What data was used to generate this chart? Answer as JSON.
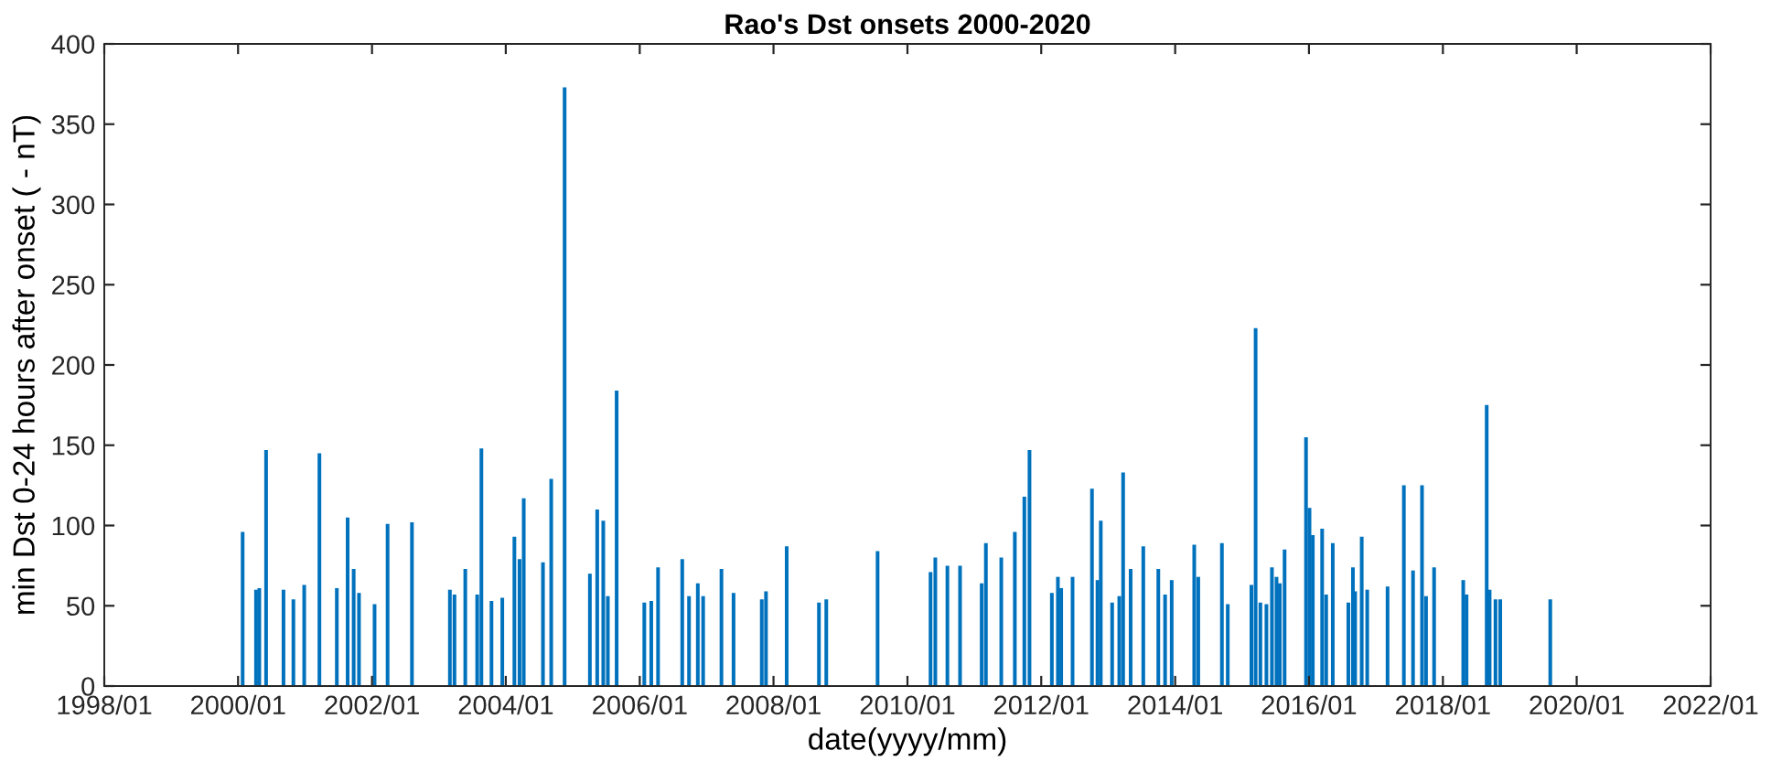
{
  "chart_data": {
    "type": "bar",
    "title": "Rao's Dst onsets 2000-2020",
    "xlabel": "date(yyyy/mm)",
    "ylabel": "min Dst 0-24 hours after onset ( - nT)",
    "x": [
      "2000-01-26",
      "2000-04-08",
      "2000-04-26",
      "2000-06-02",
      "2000-09-05",
      "2000-10-29",
      "2000-12-27",
      "2001-03-20",
      "2001-06-23",
      "2001-08-21",
      "2001-09-23",
      "2001-10-22",
      "2002-01-15",
      "2002-03-27",
      "2002-08-07",
      "2003-03-02",
      "2003-03-27",
      "2003-05-25",
      "2003-07-29",
      "2003-08-21",
      "2003-10-15",
      "2003-12-13",
      "2004-02-17",
      "2004-03-16",
      "2004-04-08",
      "2004-07-22",
      "2004-09-05",
      "2004-11-17",
      "2005-04-04",
      "2005-05-14",
      "2005-06-16",
      "2005-07-11",
      "2005-08-28",
      "2006-01-26",
      "2006-03-05",
      "2006-04-11",
      "2006-08-21",
      "2006-09-27",
      "2006-11-14",
      "2006-12-13",
      "2007-03-23",
      "2007-05-28",
      "2007-10-29",
      "2007-11-21",
      "2008-03-13",
      "2008-09-05",
      "2008-10-15",
      "2009-07-22",
      "2010-05-07",
      "2010-06-02",
      "2010-08-07",
      "2010-10-15",
      "2011-02-10",
      "2011-03-05",
      "2011-05-28",
      "2011-08-10",
      "2011-10-01",
      "2011-10-29",
      "2012-02-28",
      "2012-04-01",
      "2012-04-19",
      "2012-06-20",
      "2012-10-04",
      "2012-11-03",
      "2012-11-21",
      "2013-01-22",
      "2013-03-02",
      "2013-03-23",
      "2013-05-03",
      "2013-07-11",
      "2013-10-01",
      "2013-11-07",
      "2013-12-13",
      "2014-04-15",
      "2014-05-07",
      "2014-09-13",
      "2014-10-15",
      "2015-02-21",
      "2015-03-16",
      "2015-04-11",
      "2015-05-14",
      "2015-06-13",
      "2015-07-08",
      "2015-07-26",
      "2015-08-21",
      "2015-12-16",
      "2016-01-04",
      "2016-01-22",
      "2016-03-13",
      "2016-04-04",
      "2016-05-10",
      "2016-08-03",
      "2016-08-28",
      "2016-09-09",
      "2016-10-15",
      "2016-11-14",
      "2017-03-05",
      "2017-06-02",
      "2017-07-22",
      "2017-09-09",
      "2017-10-01",
      "2017-11-14",
      "2018-04-22",
      "2018-05-10",
      "2018-08-28",
      "2018-09-13",
      "2018-10-15",
      "2018-11-10",
      "2019-08-10"
    ],
    "values": [
      96,
      60,
      61,
      147,
      60,
      54,
      63,
      145,
      61,
      105,
      73,
      58,
      51,
      101,
      102,
      60,
      57,
      73,
      57,
      148,
      53,
      55,
      93,
      79,
      117,
      77,
      129,
      373,
      70,
      110,
      103,
      56,
      184,
      52,
      53,
      74,
      79,
      56,
      64,
      56,
      73,
      58,
      54,
      59,
      87,
      52,
      54,
      84,
      71,
      80,
      75,
      75,
      64,
      89,
      80,
      96,
      118,
      147,
      58,
      68,
      61,
      68,
      123,
      66,
      103,
      52,
      56,
      133,
      73,
      87,
      73,
      57,
      66,
      88,
      68,
      89,
      51,
      63,
      223,
      52,
      51,
      74,
      68,
      64,
      85,
      155,
      111,
      94,
      98,
      57,
      89,
      52,
      74,
      59,
      93,
      60,
      62,
      125,
      72,
      125,
      56,
      74,
      66,
      57,
      175,
      60,
      54,
      54,
      54
    ],
    "color": "#0072bd",
    "xlim": [
      "1998-01",
      "2022-01"
    ],
    "xticks": [
      {
        "value": "1998-01",
        "label": "1998/01"
      },
      {
        "value": "2000-01",
        "label": "2000/01"
      },
      {
        "value": "2002-01",
        "label": "2002/01"
      },
      {
        "value": "2004-01",
        "label": "2004/01"
      },
      {
        "value": "2006-01",
        "label": "2006/01"
      },
      {
        "value": "2008-01",
        "label": "2008/01"
      },
      {
        "value": "2010-01",
        "label": "2010/01"
      },
      {
        "value": "2012-01",
        "label": "2012/01"
      },
      {
        "value": "2014-01",
        "label": "2014/01"
      },
      {
        "value": "2016-01",
        "label": "2016/01"
      },
      {
        "value": "2018-01",
        "label": "2018/01"
      },
      {
        "value": "2020-01",
        "label": "2020/01"
      },
      {
        "value": "2022-01",
        "label": "2022/01"
      }
    ],
    "ylim": [
      0,
      400
    ],
    "yticks": [
      0,
      50,
      100,
      150,
      200,
      250,
      300,
      350,
      400
    ],
    "grid": false
  }
}
